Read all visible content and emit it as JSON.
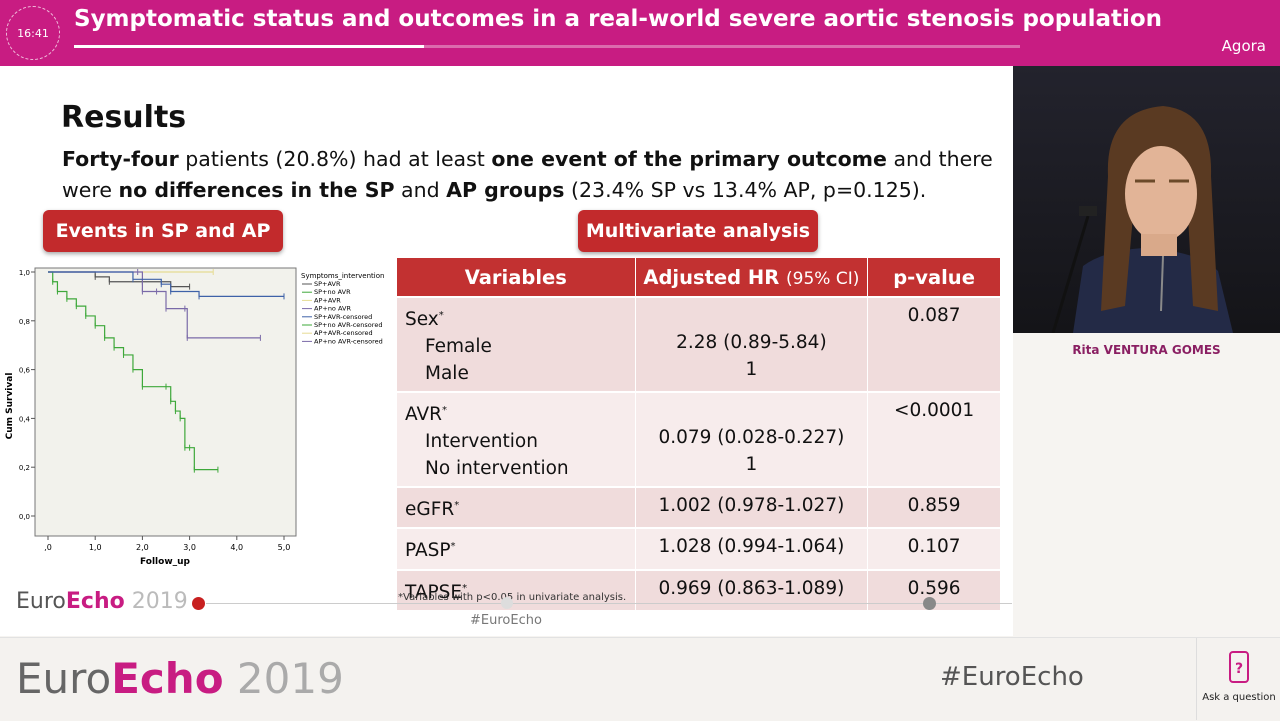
{
  "header": {
    "clock": "16:41",
    "title": "Symptomatic status and outcomes in a real-world severe aortic stenosis population",
    "room": "Agora",
    "progress": 0.37
  },
  "slide": {
    "heading": "Results",
    "summary": {
      "part1_bold": "Forty-four",
      "part2": " patients (20.8%) had at least ",
      "part3_bold": "one event of the primary outcome",
      "part4": " and there were ",
      "part5_bold": "no differences in the SP",
      "part6": " and ",
      "part7_bold": "AP groups",
      "part8": " (23.4% SP vs 13.4% AP, p=0.125)."
    },
    "badge_left": "Events in SP and AP",
    "badge_right": "Multivariate analysis",
    "table": {
      "headers": {
        "variables": "Variables",
        "hr": "Adjusted HR",
        "hr_sub": "(95% CI)",
        "p": "p-value"
      },
      "rows": {
        "sex": {
          "label": "Sex",
          "sup": "*",
          "female": "Female",
          "male": "Male",
          "female_hr": "2.28 (0.89-5.84)",
          "male_hr": "1",
          "p": "0.087"
        },
        "avr": {
          "label": "AVR",
          "sup": "*",
          "intervention": "Intervention",
          "no_intervention": "No intervention",
          "int_hr": "0.079 (0.028-0.227)",
          "noint_hr": "1",
          "p": "<0.0001"
        },
        "egfr": {
          "label": "eGFR",
          "sup": "*",
          "hr": "1.002 (0.978-1.027)",
          "p": "0.859"
        },
        "pasp": {
          "label": "PASP",
          "sup": "*",
          "hr": "1.028 (0.994-1.064)",
          "p": "0.107"
        },
        "tapse": {
          "label": "TAPSE",
          "sup": "*",
          "hr": "0.969 (0.863-1.089)",
          "p": "0.596"
        }
      }
    },
    "footnote": "*Variables with p<0.05 in univariate analysis.",
    "logo": {
      "euro": "Euro",
      "echo": "Echo",
      "year": "2019"
    },
    "hashtag": "#EuroEcho"
  },
  "chart_data": {
    "type": "line",
    "xlabel": "Follow_up",
    "ylabel": "Cum Survival",
    "xlim": [
      0,
      5
    ],
    "ylim": [
      0,
      1
    ],
    "xticks": [
      ",0",
      "1,0",
      "2,0",
      "3,0",
      "4,0",
      "5,0"
    ],
    "yticks": [
      "0,0",
      "0,2",
      "0,4",
      "0,6",
      "0,8",
      "1,0"
    ],
    "legend_title": "Symptoms_intervention",
    "legend": [
      "SP+AVR",
      "SP+no AVR",
      "AP+AVR",
      "AP+no AVR",
      "SP+AVR-censored",
      "SP+no AVR-censored",
      "AP+AVR-censored",
      "AP+no AVR-censored"
    ],
    "series": [
      {
        "name": "SP+AVR",
        "color": "#555555",
        "x": [
          0,
          1.0,
          1.3,
          2.0,
          2.6,
          3.0
        ],
        "y": [
          1.0,
          0.98,
          0.96,
          0.96,
          0.94,
          0.94
        ]
      },
      {
        "name": "SP+no AVR",
        "color": "#3ea83a",
        "x": [
          0,
          0.1,
          0.2,
          0.4,
          0.6,
          0.8,
          1.0,
          1.2,
          1.4,
          1.6,
          1.8,
          2.0,
          2.5,
          2.6,
          2.7,
          2.8,
          2.9,
          3.0,
          3.1,
          3.6
        ],
        "y": [
          1.0,
          0.96,
          0.92,
          0.89,
          0.86,
          0.82,
          0.78,
          0.73,
          0.69,
          0.66,
          0.6,
          0.53,
          0.53,
          0.47,
          0.43,
          0.4,
          0.28,
          0.28,
          0.19,
          0.19
        ]
      },
      {
        "name": "AP+AVR",
        "color": "#e6dc93",
        "x": [
          2.0,
          3.5
        ],
        "y": [
          1.0,
          1.0
        ]
      },
      {
        "name": "AP+no AVR",
        "color": "#7a6aa8",
        "x": [
          0,
          1.9,
          2.0,
          2.3,
          2.5,
          2.9,
          2.95,
          4.5
        ],
        "y": [
          1.0,
          1.0,
          0.92,
          0.92,
          0.85,
          0.85,
          0.73,
          0.73
        ]
      },
      {
        "name": "SP+AVR-b",
        "color": "#3f62a8",
        "x": [
          0,
          1.8,
          2.4,
          2.6,
          3.2,
          5.0
        ],
        "y": [
          1.0,
          0.97,
          0.95,
          0.92,
          0.9,
          0.9
        ]
      }
    ]
  },
  "speaker": {
    "name": "Rita VENTURA GOMES"
  },
  "footer": {
    "euro": "Euro",
    "echo": "Echo",
    "year": "2019",
    "hashtag": "#EuroEcho",
    "ask": "Ask a question"
  }
}
